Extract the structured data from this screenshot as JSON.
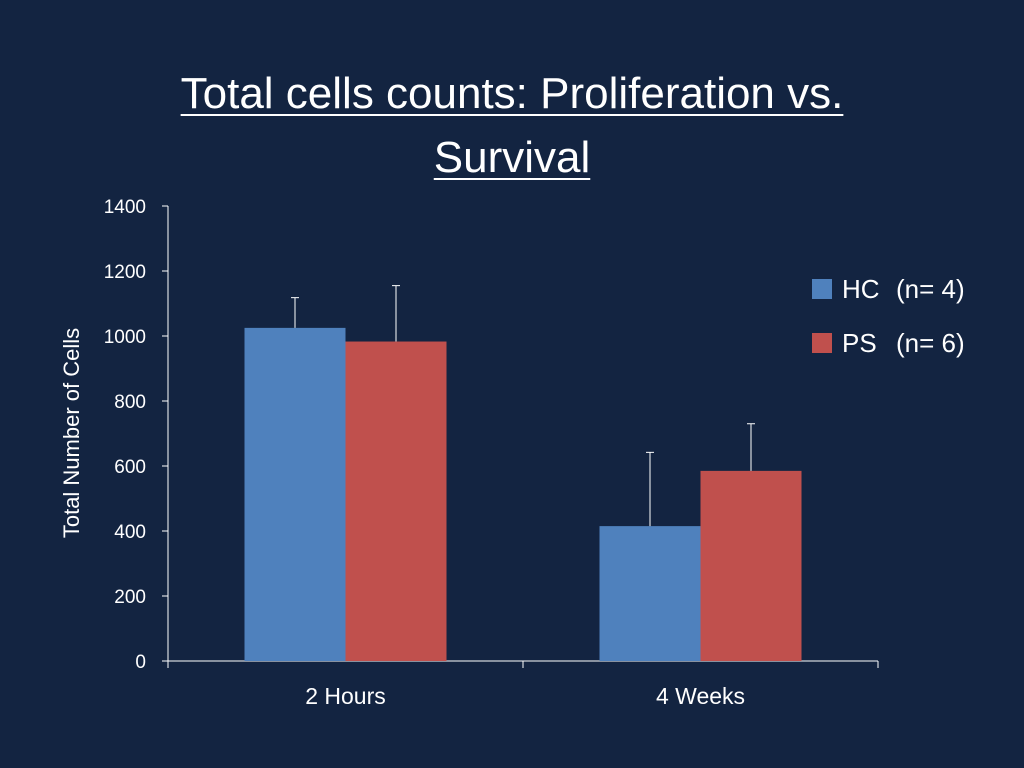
{
  "slide": {
    "title_line1": "Total  cells counts: Proliferation vs.",
    "title_line2": "Survival"
  },
  "chart_data": {
    "type": "bar",
    "categories": [
      "2 Hours",
      "4 Weeks"
    ],
    "series": [
      {
        "name": "HC",
        "values": [
          1025,
          415
        ],
        "error_upper": [
          1118,
          642
        ],
        "color": "#4F81BD"
      },
      {
        "name": "PS",
        "values": [
          983,
          585
        ],
        "error_upper": [
          1155,
          730
        ],
        "color": "#C0504D"
      }
    ],
    "ylabel": "Total Number of Cells",
    "xlabel": "",
    "ylim": [
      0,
      1400
    ],
    "yticks": [
      0,
      200,
      400,
      600,
      800,
      1000,
      1200,
      1400
    ],
    "grid": false,
    "legend_position": "right",
    "axis_color": "#ffffff"
  },
  "legend": {
    "items": [
      {
        "name": "HC",
        "note": "(n= 4)",
        "color": "#4F81BD"
      },
      {
        "name": "PS",
        "note": "(n= 6)",
        "color": "#C0504D"
      }
    ]
  }
}
